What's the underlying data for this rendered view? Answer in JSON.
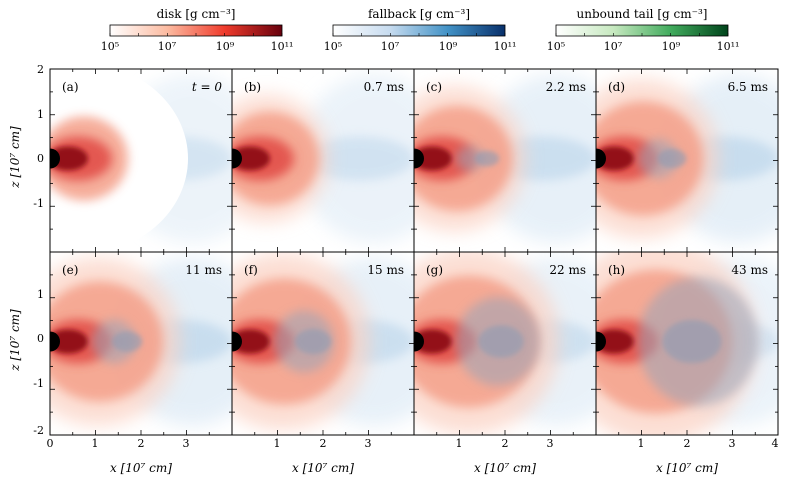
{
  "figure": {
    "colorbars": [
      {
        "label": "disk [g cm⁻³]",
        "ticks": [
          "10⁵",
          "10⁷",
          "10⁹",
          "10¹¹"
        ],
        "colors": [
          "#ffffff",
          "#fcbba1",
          "#ef3b2c",
          "#67000d"
        ]
      },
      {
        "label": "fallback [g cm⁻³]",
        "ticks": [
          "10⁵",
          "10⁷",
          "10⁹",
          "10¹¹"
        ],
        "colors": [
          "#ffffff",
          "#c6dbef",
          "#4292c6",
          "#08306b"
        ]
      },
      {
        "label": "unbound tail [g cm⁻³]",
        "ticks": [
          "10⁵",
          "10⁷",
          "10⁹",
          "10¹¹"
        ],
        "colors": [
          "#ffffff",
          "#c7e9c0",
          "#41ab5d",
          "#00441b"
        ]
      }
    ],
    "panels": [
      {
        "tag": "(a)",
        "time": "t = 0",
        "tailExtent": 0.0,
        "diskExtent": 1.0,
        "fallbackStrength": 0.25
      },
      {
        "tag": "(b)",
        "time": "0.7 ms",
        "tailExtent": 0.0,
        "diskExtent": 1.15,
        "fallbackStrength": 0.3
      },
      {
        "tag": "(c)",
        "time": "2.2 ms",
        "tailExtent": 0.15,
        "diskExtent": 1.35,
        "fallbackStrength": 0.4
      },
      {
        "tag": "(d)",
        "time": "6.5 ms",
        "tailExtent": 0.3,
        "diskExtent": 1.5,
        "fallbackStrength": 0.45
      },
      {
        "tag": "(e)",
        "time": "11 ms",
        "tailExtent": 0.35,
        "diskExtent": 1.6,
        "fallbackStrength": 0.45
      },
      {
        "tag": "(f)",
        "time": "15 ms",
        "tailExtent": 0.55,
        "diskExtent": 1.7,
        "fallbackStrength": 0.4
      },
      {
        "tag": "(g)",
        "time": "22 ms",
        "tailExtent": 0.85,
        "diskExtent": 1.8,
        "fallbackStrength": 0.35
      },
      {
        "tag": "(h)",
        "time": "43 ms",
        "tailExtent": 1.3,
        "diskExtent": 2.0,
        "fallbackStrength": 0.3
      }
    ],
    "xAxis": {
      "label": "x [10⁷ cm]",
      "ticksFirst": [
        "0",
        "1",
        "2",
        "3"
      ],
      "ticksOther": [
        "1",
        "2",
        "3"
      ],
      "lastTick": "4"
    },
    "yAxis": {
      "label": "z [10⁷ cm]",
      "ticksTop": [
        "2",
        "1",
        "0",
        "-1"
      ],
      "ticksBottom": [
        "1",
        "0",
        "-1",
        "-2"
      ]
    }
  }
}
